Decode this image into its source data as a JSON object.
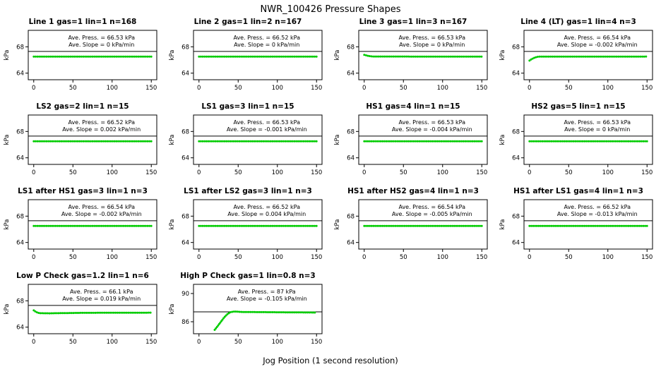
{
  "title": "NWR_100426  Pressure Shapes",
  "xlabel": "Jog Position (1 second resolution)",
  "colors": {
    "series": "#00CC00",
    "axis": "#000000",
    "background": "#FFFFFF"
  },
  "chart_data": [
    {
      "type": "scatter",
      "title": "Line 1 gas=1 lin=1 n=168",
      "gas": 1,
      "lin": 1,
      "n": 168,
      "ave_press_kpa": 66.53,
      "ave_slope_kpa_per_min": 0,
      "ave_press_label": "Ave. Press. = 66.53 kPa",
      "ave_slope_label": "Ave. Slope = 0 kPa/min",
      "ylabel": "kPa",
      "xlim": [
        -7,
        157
      ],
      "ylim": [
        63,
        70.5
      ],
      "xticks": [
        0,
        50,
        100,
        150
      ],
      "yticks": [
        64,
        68
      ],
      "ref_line_kpa": 67.3,
      "shape": [
        [
          0,
          66.5
        ],
        [
          150,
          66.5
        ]
      ]
    },
    {
      "type": "scatter",
      "title": "Line 2 gas=1 lin=2 n=167",
      "gas": 1,
      "lin": 2,
      "n": 167,
      "ave_press_kpa": 66.52,
      "ave_slope_kpa_per_min": 0,
      "ave_press_label": "Ave. Press. = 66.52 kPa",
      "ave_slope_label": "Ave. Slope = 0 kPa/min",
      "ylabel": "kPa",
      "xlim": [
        -7,
        157
      ],
      "ylim": [
        63,
        70.5
      ],
      "xticks": [
        0,
        50,
        100,
        150
      ],
      "yticks": [
        64,
        68
      ],
      "ref_line_kpa": 67.3,
      "shape": [
        [
          0,
          66.5
        ],
        [
          150,
          66.5
        ]
      ]
    },
    {
      "type": "scatter",
      "title": "Line 3 gas=1 lin=3 n=167",
      "gas": 1,
      "lin": 3,
      "n": 167,
      "ave_press_kpa": 66.53,
      "ave_slope_kpa_per_min": 0,
      "ave_press_label": "Ave. Press. = 66.53 kPa",
      "ave_slope_label": "Ave. Slope = 0 kPa/min",
      "ylabel": "kPa",
      "xlim": [
        -7,
        157
      ],
      "ylim": [
        63,
        70.5
      ],
      "xticks": [
        0,
        50,
        100,
        150
      ],
      "yticks": [
        64,
        68
      ],
      "ref_line_kpa": 67.3,
      "shape": [
        [
          0,
          66.78
        ],
        [
          5,
          66.62
        ],
        [
          10,
          66.53
        ],
        [
          150,
          66.5
        ]
      ]
    },
    {
      "type": "scatter",
      "title": "Line 4 (LT) gas=1 lin=4 n=3",
      "gas": 1,
      "lin": 4,
      "n": 3,
      "ave_press_kpa": 66.54,
      "ave_slope_kpa_per_min": -0.002,
      "ave_press_label": "Ave. Press. = 66.54 kPa",
      "ave_slope_label": "Ave. Slope = -0.002 kPa/min",
      "ylabel": "kPa",
      "xlim": [
        -7,
        157
      ],
      "ylim": [
        63,
        70.5
      ],
      "xticks": [
        0,
        50,
        100,
        150
      ],
      "yticks": [
        64,
        68
      ],
      "ref_line_kpa": 67.3,
      "shape": [
        [
          0,
          65.9
        ],
        [
          3,
          66.15
        ],
        [
          7,
          66.38
        ],
        [
          11,
          66.5
        ],
        [
          150,
          66.52
        ]
      ]
    },
    {
      "type": "scatter",
      "title": "LS2 gas=2 lin=1 n=15",
      "gas": 2,
      "lin": 1,
      "n": 15,
      "ave_press_kpa": 66.52,
      "ave_slope_kpa_per_min": 0.002,
      "ave_press_label": "Ave. Press. = 66.52 kPa",
      "ave_slope_label": "Ave. Slope = 0.002 kPa/min",
      "ylabel": "kPa",
      "xlim": [
        -7,
        157
      ],
      "ylim": [
        63,
        70.5
      ],
      "xticks": [
        0,
        50,
        100,
        150
      ],
      "yticks": [
        64,
        68
      ],
      "ref_line_kpa": 67.3,
      "shape": [
        [
          0,
          66.5
        ],
        [
          150,
          66.5
        ]
      ]
    },
    {
      "type": "scatter",
      "title": "LS1 gas=3 lin=1 n=15",
      "gas": 3,
      "lin": 1,
      "n": 15,
      "ave_press_kpa": 66.53,
      "ave_slope_kpa_per_min": -0.001,
      "ave_press_label": "Ave. Press. = 66.53 kPa",
      "ave_slope_label": "Ave. Slope = -0.001 kPa/min",
      "ylabel": "kPa",
      "xlim": [
        -7,
        157
      ],
      "ylim": [
        63,
        70.5
      ],
      "xticks": [
        0,
        50,
        100,
        150
      ],
      "yticks": [
        64,
        68
      ],
      "ref_line_kpa": 67.3,
      "shape": [
        [
          0,
          66.5
        ],
        [
          150,
          66.5
        ]
      ]
    },
    {
      "type": "scatter",
      "title": "HS1 gas=4 lin=1 n=15",
      "gas": 4,
      "lin": 1,
      "n": 15,
      "ave_press_kpa": 66.53,
      "ave_slope_kpa_per_min": -0.004,
      "ave_press_label": "Ave. Press. = 66.53 kPa",
      "ave_slope_label": "Ave. Slope = -0.004 kPa/min",
      "ylabel": "kPa",
      "xlim": [
        -7,
        157
      ],
      "ylim": [
        63,
        70.5
      ],
      "xticks": [
        0,
        50,
        100,
        150
      ],
      "yticks": [
        64,
        68
      ],
      "ref_line_kpa": 67.3,
      "shape": [
        [
          0,
          66.5
        ],
        [
          150,
          66.5
        ]
      ]
    },
    {
      "type": "scatter",
      "title": "HS2 gas=5 lin=1 n=15",
      "gas": 5,
      "lin": 1,
      "n": 15,
      "ave_press_kpa": 66.53,
      "ave_slope_kpa_per_min": 0,
      "ave_press_label": "Ave. Press. = 66.53 kPa",
      "ave_slope_label": "Ave. Slope = 0 kPa/min",
      "ylabel": "kPa",
      "xlim": [
        -7,
        157
      ],
      "ylim": [
        63,
        70.5
      ],
      "xticks": [
        0,
        50,
        100,
        150
      ],
      "yticks": [
        64,
        68
      ],
      "ref_line_kpa": 67.3,
      "shape": [
        [
          0,
          66.5
        ],
        [
          150,
          66.5
        ]
      ]
    },
    {
      "type": "scatter",
      "title": "LS1 after HS1 gas=3 lin=1 n=3",
      "gas": 3,
      "lin": 1,
      "n": 3,
      "ave_press_kpa": 66.54,
      "ave_slope_kpa_per_min": -0.002,
      "ave_press_label": "Ave. Press. = 66.54 kPa",
      "ave_slope_label": "Ave. Slope = -0.002 kPa/min",
      "ylabel": "kPa",
      "xlim": [
        -7,
        157
      ],
      "ylim": [
        63,
        70.5
      ],
      "xticks": [
        0,
        50,
        100,
        150
      ],
      "yticks": [
        64,
        68
      ],
      "ref_line_kpa": 67.3,
      "shape": [
        [
          0,
          66.5
        ],
        [
          150,
          66.5
        ]
      ]
    },
    {
      "type": "scatter",
      "title": "LS1 after LS2 gas=3 lin=1 n=3",
      "gas": 3,
      "lin": 1,
      "n": 3,
      "ave_press_kpa": 66.52,
      "ave_slope_kpa_per_min": 0.004,
      "ave_press_label": "Ave. Press. = 66.52 kPa",
      "ave_slope_label": "Ave. Slope = 0.004 kPa/min",
      "ylabel": "kPa",
      "xlim": [
        -7,
        157
      ],
      "ylim": [
        63,
        70.5
      ],
      "xticks": [
        0,
        50,
        100,
        150
      ],
      "yticks": [
        64,
        68
      ],
      "ref_line_kpa": 67.3,
      "shape": [
        [
          0,
          66.5
        ],
        [
          150,
          66.5
        ]
      ]
    },
    {
      "type": "scatter",
      "title": "HS1 after HS2 gas=4 lin=1 n=3",
      "gas": 4,
      "lin": 1,
      "n": 3,
      "ave_press_kpa": 66.54,
      "ave_slope_kpa_per_min": -0.005,
      "ave_press_label": "Ave. Press. = 66.54 kPa",
      "ave_slope_label": "Ave. Slope = -0.005 kPa/min",
      "ylabel": "kPa",
      "xlim": [
        -7,
        157
      ],
      "ylim": [
        63,
        70.5
      ],
      "xticks": [
        0,
        50,
        100,
        150
      ],
      "yticks": [
        64,
        68
      ],
      "ref_line_kpa": 67.3,
      "shape": [
        [
          0,
          66.5
        ],
        [
          150,
          66.5
        ]
      ]
    },
    {
      "type": "scatter",
      "title": "HS1 after LS1 gas=4 lin=1 n=3",
      "gas": 4,
      "lin": 1,
      "n": 3,
      "ave_press_kpa": 66.52,
      "ave_slope_kpa_per_min": -0.013,
      "ave_press_label": "Ave. Press. = 66.52 kPa",
      "ave_slope_label": "Ave. Slope = -0.013 kPa/min",
      "ylabel": "kPa",
      "xlim": [
        -7,
        157
      ],
      "ylim": [
        63,
        70.5
      ],
      "xticks": [
        0,
        50,
        100,
        150
      ],
      "yticks": [
        64,
        68
      ],
      "ref_line_kpa": 67.3,
      "shape": [
        [
          0,
          66.5
        ],
        [
          150,
          66.5
        ]
      ]
    },
    {
      "type": "scatter",
      "title": "Low P Check gas=1.2 lin=1 n=6",
      "gas": 1.2,
      "lin": 1,
      "n": 6,
      "ave_press_kpa": 66.1,
      "ave_slope_kpa_per_min": 0.019,
      "ave_press_label": "Ave. Press. = 66.1 kPa",
      "ave_slope_label": "Ave. Slope = 0.019 kPa/min",
      "ylabel": "kPa",
      "xlim": [
        -7,
        157
      ],
      "ylim": [
        63,
        70.5
      ],
      "xticks": [
        0,
        50,
        100,
        150
      ],
      "yticks": [
        64,
        68
      ],
      "ref_line_kpa": 67.3,
      "shape": [
        [
          0,
          66.55
        ],
        [
          3,
          66.3
        ],
        [
          7,
          66.12
        ],
        [
          20,
          66.1
        ],
        [
          60,
          66.17
        ],
        [
          150,
          66.2
        ]
      ]
    },
    {
      "type": "scatter",
      "title": "High P Check gas=1 lin=0.8 n=3",
      "gas": 1,
      "lin": 0.8,
      "n": 3,
      "ave_press_kpa": 87,
      "ave_slope_kpa_per_min": -0.105,
      "ave_press_label": "Ave. Press. = 87 kPa",
      "ave_slope_label": "Ave. Slope = -0.105 kPa/min",
      "ylabel": "kPa",
      "xlim": [
        -7,
        157
      ],
      "ylim": [
        84.3,
        91.3
      ],
      "xticks": [
        0,
        50,
        100,
        150
      ],
      "yticks": [
        86,
        90
      ],
      "ref_line_kpa": 87.4,
      "shape": [
        [
          20,
          84.85
        ],
        [
          24,
          85.4
        ],
        [
          28,
          86.0
        ],
        [
          32,
          86.6
        ],
        [
          36,
          87.05
        ],
        [
          40,
          87.35
        ],
        [
          45,
          87.45
        ],
        [
          55,
          87.38
        ],
        [
          150,
          87.3
        ]
      ]
    }
  ]
}
